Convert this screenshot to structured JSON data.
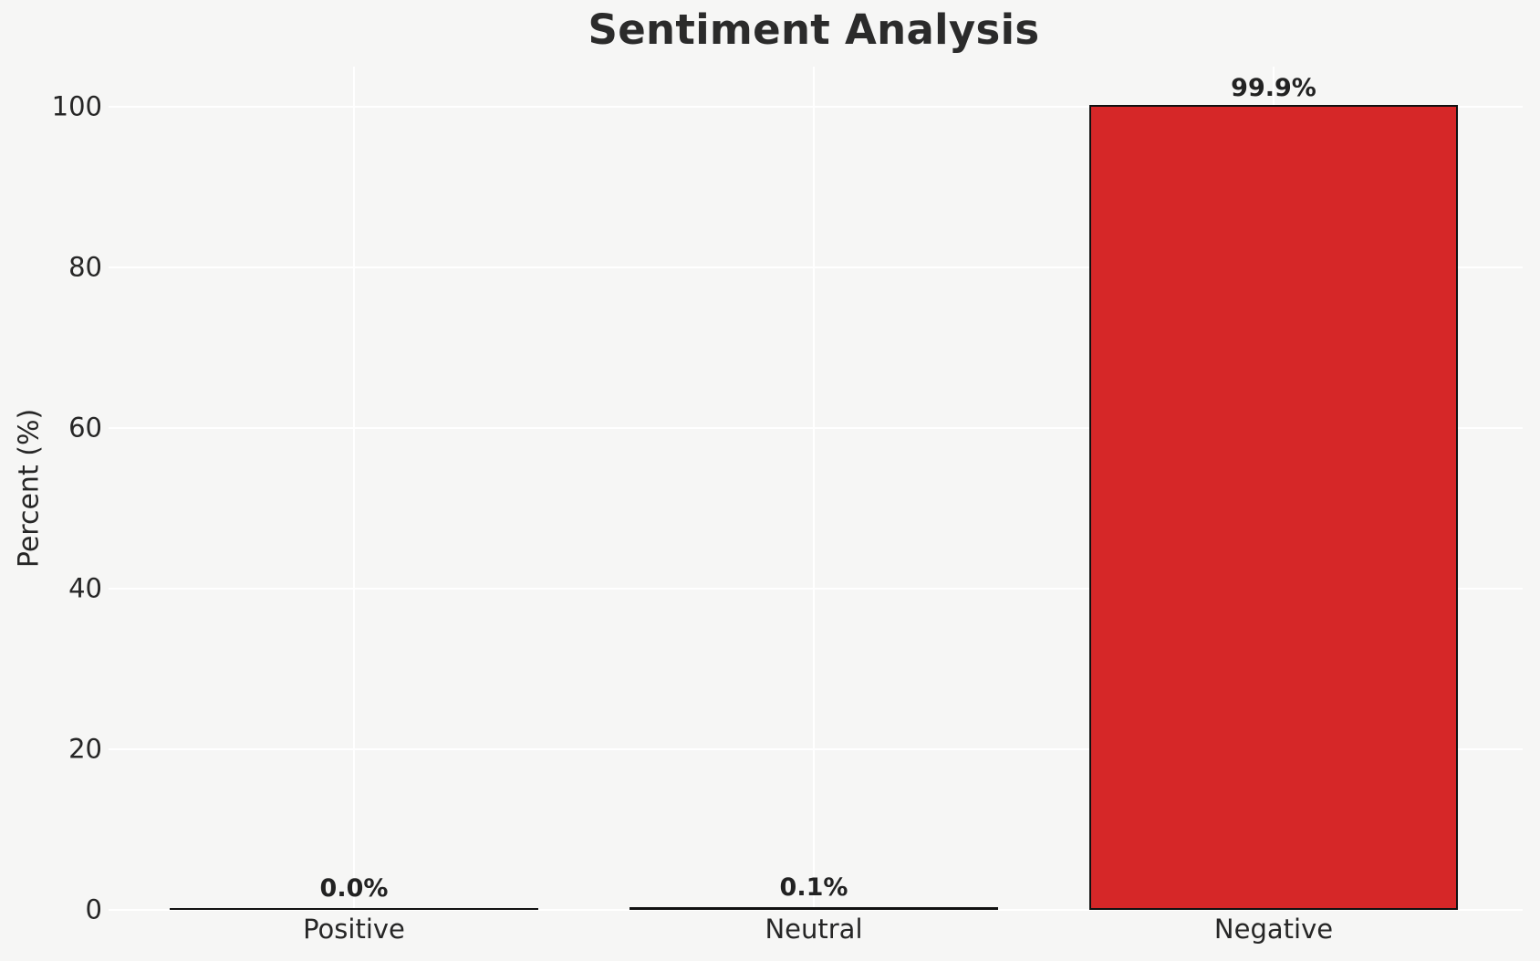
{
  "chart_data": {
    "type": "bar",
    "title": "Sentiment Analysis",
    "xlabel": "",
    "ylabel": "Percent (%)",
    "categories": [
      "Positive",
      "Neutral",
      "Negative"
    ],
    "values": [
      0.0,
      0.1,
      99.9
    ],
    "value_labels": [
      "0.0%",
      "0.1%",
      "99.9%"
    ],
    "yticks": [
      0,
      20,
      40,
      60,
      80,
      100
    ],
    "ylim": [
      0,
      105
    ],
    "grid": true,
    "legend_position": "none",
    "colors": {
      "bar_fill": "#d62728",
      "bar_edge": "#111111",
      "background": "#f6f6f5",
      "gridline": "#ffffff",
      "text": "#262626",
      "title_text": "#2b2b2b"
    }
  }
}
